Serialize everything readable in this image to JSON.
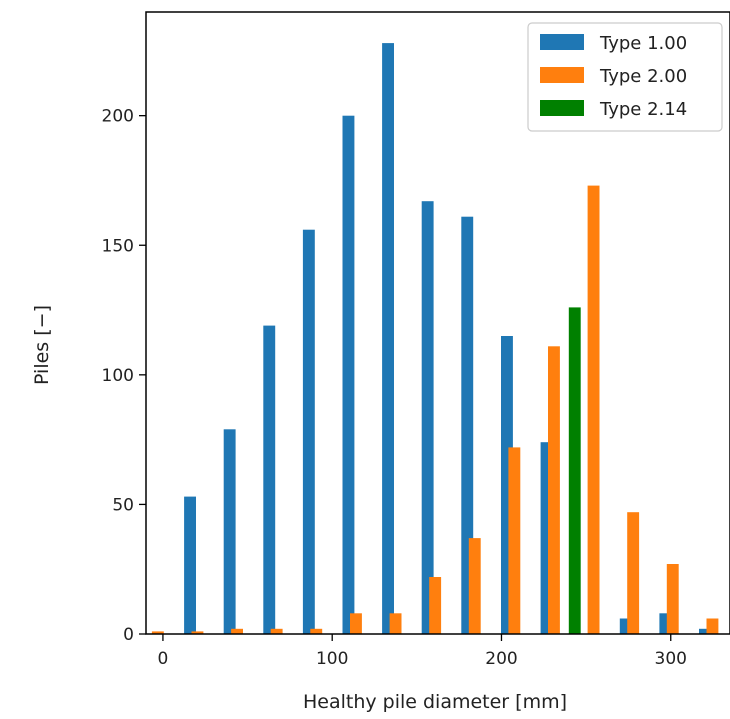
{
  "chart_data": {
    "type": "bar",
    "title": "",
    "xlabel": "Healthy pile diameter [mm]",
    "ylabel": "Piles [−]",
    "xlim": [
      -10,
      335
    ],
    "ylim": [
      0,
      240
    ],
    "xticks": [
      0,
      100,
      200,
      300
    ],
    "yticks": [
      0,
      50,
      100,
      150,
      200
    ],
    "grid": false,
    "legend_position": "top-right",
    "bin_width": 23.4,
    "series": [
      {
        "name": "Type 1.00",
        "color": "#1f77b4",
        "bars": [
          {
            "x": 16,
            "y": 53
          },
          {
            "x": 39.4,
            "y": 79
          },
          {
            "x": 62.8,
            "y": 119
          },
          {
            "x": 86.2,
            "y": 156
          },
          {
            "x": 109.6,
            "y": 200
          },
          {
            "x": 133,
            "y": 228
          },
          {
            "x": 156.4,
            "y": 167
          },
          {
            "x": 179.8,
            "y": 161
          },
          {
            "x": 203.2,
            "y": 115
          },
          {
            "x": 226.6,
            "y": 74
          },
          {
            "x": 273.4,
            "y": 6
          },
          {
            "x": 296.8,
            "y": 8
          },
          {
            "x": 320.2,
            "y": 2
          }
        ]
      },
      {
        "name": "Type 2.00",
        "color": "#ff7f0e",
        "bars": [
          {
            "x": -3,
            "y": 1
          },
          {
            "x": 20.4,
            "y": 1
          },
          {
            "x": 43.8,
            "y": 2
          },
          {
            "x": 67.2,
            "y": 2
          },
          {
            "x": 90.6,
            "y": 2
          },
          {
            "x": 114,
            "y": 8
          },
          {
            "x": 137.4,
            "y": 8
          },
          {
            "x": 160.8,
            "y": 22
          },
          {
            "x": 184.2,
            "y": 37
          },
          {
            "x": 207.6,
            "y": 72
          },
          {
            "x": 231,
            "y": 111
          },
          {
            "x": 254.4,
            "y": 173
          },
          {
            "x": 277.8,
            "y": 47
          },
          {
            "x": 301.2,
            "y": 27
          },
          {
            "x": 324.6,
            "y": 6
          }
        ]
      },
      {
        "name": "Type 2.14",
        "color": "#008000",
        "bars": [
          {
            "x": 243.3,
            "y": 126
          }
        ]
      }
    ]
  }
}
